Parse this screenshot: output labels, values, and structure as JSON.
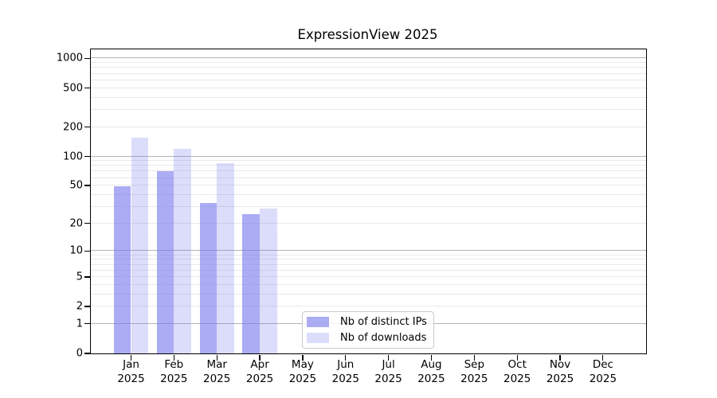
{
  "figure": {
    "title": "ExpressionView 2025"
  },
  "chart_data": {
    "type": "bar",
    "title": "ExpressionView 2025",
    "xlabel": "",
    "ylabel": "",
    "y_scale": "log1p",
    "grid": "horizontal",
    "y_ticks": [
      0,
      1,
      2,
      5,
      10,
      20,
      50,
      100,
      200,
      500,
      1000
    ],
    "ylim": [
      0,
      1250
    ],
    "categories": [
      "Jan",
      "Feb",
      "Mar",
      "Apr",
      "May",
      "Jun",
      "Jul",
      "Aug",
      "Sep",
      "Oct",
      "Nov",
      "Dec"
    ],
    "x_tick_year": "2025",
    "series": [
      {
        "name": "Nb of distinct IPs",
        "color": "rgba(121,121,238,0.62)",
        "values": [
          49,
          70,
          33,
          25,
          null,
          null,
          null,
          null,
          null,
          null,
          null,
          null
        ]
      },
      {
        "name": "Nb of downloads",
        "color": "rgba(121,121,238,0.26)",
        "values": [
          155,
          120,
          85,
          29,
          null,
          null,
          null,
          null,
          null,
          null,
          null,
          null
        ]
      }
    ],
    "legend": {
      "position": "bottom-center",
      "items": [
        "Nb of distinct IPs",
        "Nb of downloads"
      ]
    },
    "colors": {
      "major_grid": "#b3b3b3",
      "minor_grid": "#e9e9e9",
      "axis": "#000000",
      "background": "#ffffff"
    }
  }
}
